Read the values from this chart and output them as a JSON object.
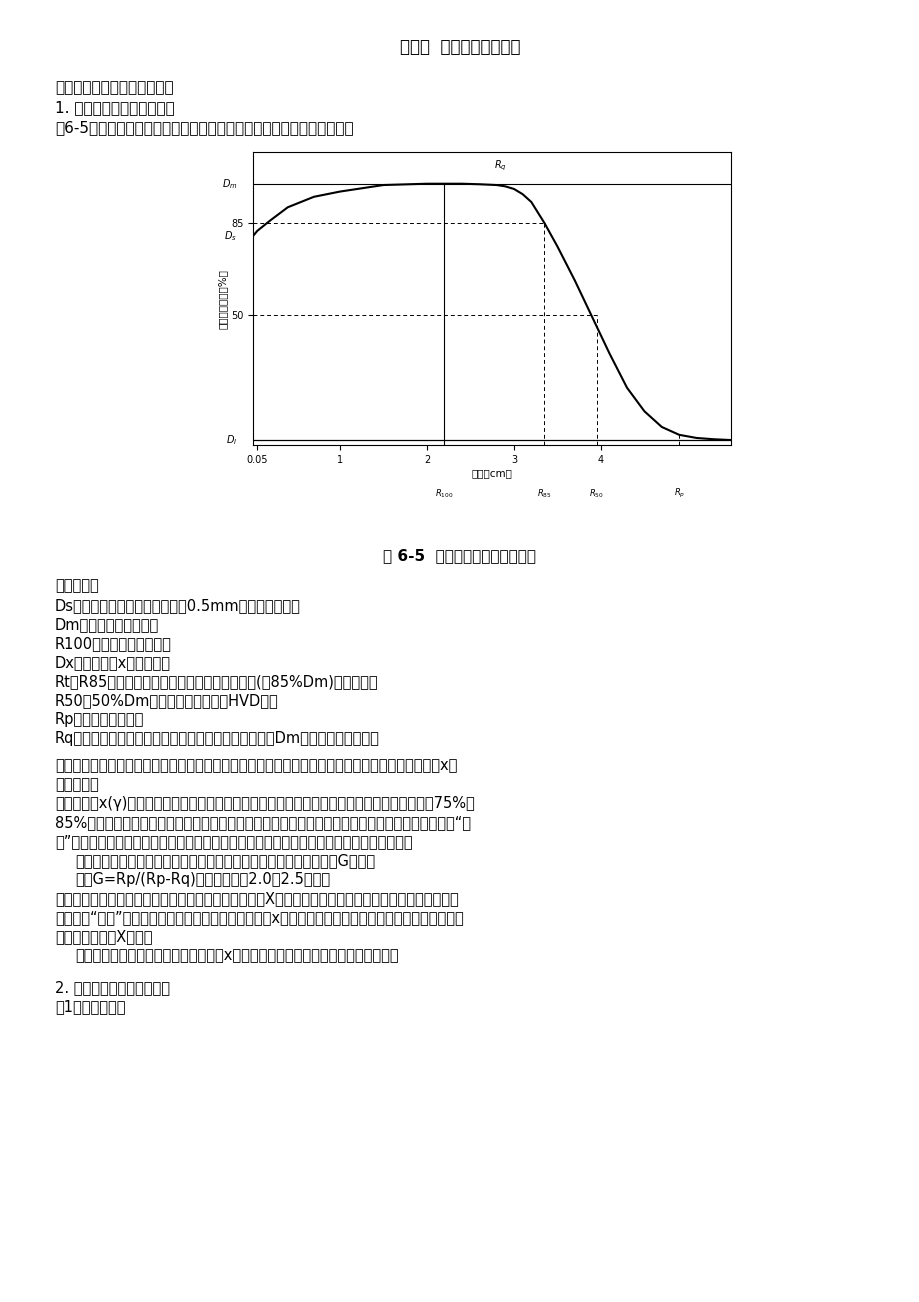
{
  "title": "第二节  电子束射野剂量学",
  "section1": "一、中心轴百分深度剂量曲线",
  "section1_1": "1. 百分深度剂量曲线的特点",
  "section1_1_intro": "图6-5示出了模体内电子束中心轴百分深度剂量的基本特性及有关参数。",
  "fig_caption": "图 6-5  电子束百分深度剂量曲线",
  "params_title": "有关参数：",
  "param1": "Ds：入射或表面剂量，以表面下0.5mm处的剂量表示；",
  "param2": "Dm：最大剂量点剂量；",
  "param3": "R100：最大剂量点深度；",
  "param4": "Dx：电子束中x射线剂量；",
  "param5": "Rt（R85）：有效治疗深度，即治疗剂量规定值(如85%Dm)处的深度；",
  "param6": "R50：50%Dm或半峰值处的深度（HVD）；",
  "param7": "Rp：电子束的射程；",
  "param8": "Rq：百分深度剂量曲线上，过剂量跌落最陡点的切线与Dm水平线交点的深度。",
  "para1_line1": "　　高能电子束的百分深度剂量分布，大致可分为四部分：剂量建成区、高剂量坪区、剂量跌落区和x射",
  "para1_line2": "线污染区。",
  "para2_line1": "　　与高能x(γ)射线相比，高能电子束的剂量建成效应不明显，表现为：表面剂量高，一般都在75%～",
  "para2_line2": "85%以上，并随能量增加而增加；随着深度的增加，百分深度剂量很快达到最大点；然后形成高剂量“坪",
  "para2_line3": "区”。这主要是由于电子束在其运动径迹上，很容易被散射，使得单位截面上电子注量增加。",
  "para3": "　　剂量跌落是临床使用高能电子束时极为重要的一个概念。用剂量梯度G表示，",
  "para4": "　　记为G=Rp/(Rp-Rq)。该值一般在2.0～2.5之间。",
  "para5_line1": "　　任何医用加速器产生的电子束都包含有一定数量的X射线，从而表现为百分深度剂量分布曲线后部有",
  "para5_line2": "一长长的“拖尾”。电子束在经过散射箔、监测电离室、x射线准直器和电子限光筒装置时，与这些物质相",
  "para5_line3": "互作用，产生了X射线。",
  "para6": "　　对采用散射箔系统的医用直线加速器，x射线污染水平随电子束能量的增加而增加。",
  "section2": "2. 百分深度剂量的影响因素",
  "section2_1": "（1）能量的影响",
  "bg_color": "#ffffff",
  "text_color": "#000000",
  "chart_bg": "#ffffff"
}
